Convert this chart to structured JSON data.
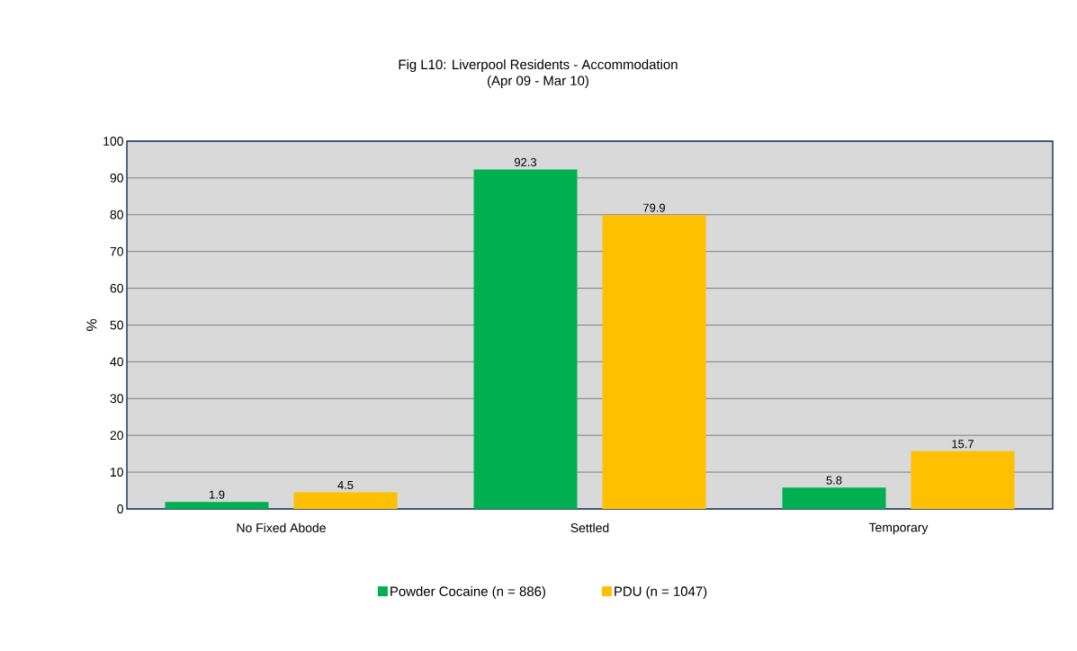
{
  "chart_data": {
    "type": "bar",
    "title": "Fig L10: Liverpool Residents - Accommodation",
    "subtitle": "(Apr 09 - Mar 10)",
    "ylabel": "%",
    "categories": [
      "No Fixed Abode",
      "Settled",
      "Temporary"
    ],
    "series": [
      {
        "name": "Powder Cocaine (n = 886)",
        "color": "#00b050",
        "values": [
          1.9,
          92.3,
          5.8
        ]
      },
      {
        "name": "PDU (n = 1047)",
        "color": "#ffc000",
        "values": [
          4.5,
          79.9,
          15.7
        ]
      }
    ],
    "ylim": [
      0,
      100
    ],
    "yticks": [
      0,
      10,
      20,
      30,
      40,
      50,
      60,
      70,
      80,
      90,
      100
    ],
    "grid": "y",
    "legend": "bottom",
    "data_labels": true
  }
}
